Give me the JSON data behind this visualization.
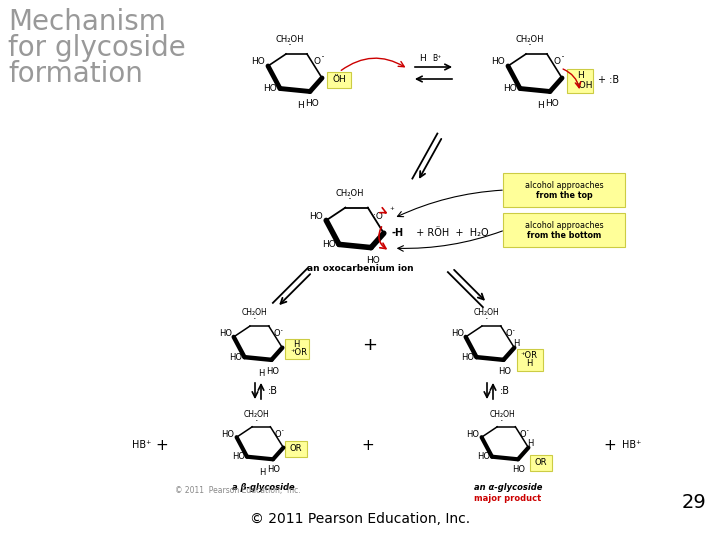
{
  "title_line1": "Mechanism",
  "title_line2": "for glycoside",
  "title_line3": "formation",
  "title_color": "#999999",
  "title_fontsize": 20,
  "footer_text": "© 2011 Pearson Education, Inc.",
  "footer_fontsize": 10,
  "footer_color": "#000000",
  "page_number": "29",
  "page_number_fontsize": 14,
  "copyright_small": "© 2011  Pearson Education,  Inc.",
  "copyright_small_fontsize": 5.5,
  "copyright_small_color": "#888888",
  "background_color": "#ffffff",
  "yellow_fill": "#ffff99",
  "yellow_edge": "#cccc44",
  "red_color": "#cc0000",
  "black": "#000000",
  "major_product_color": "#cc0000"
}
